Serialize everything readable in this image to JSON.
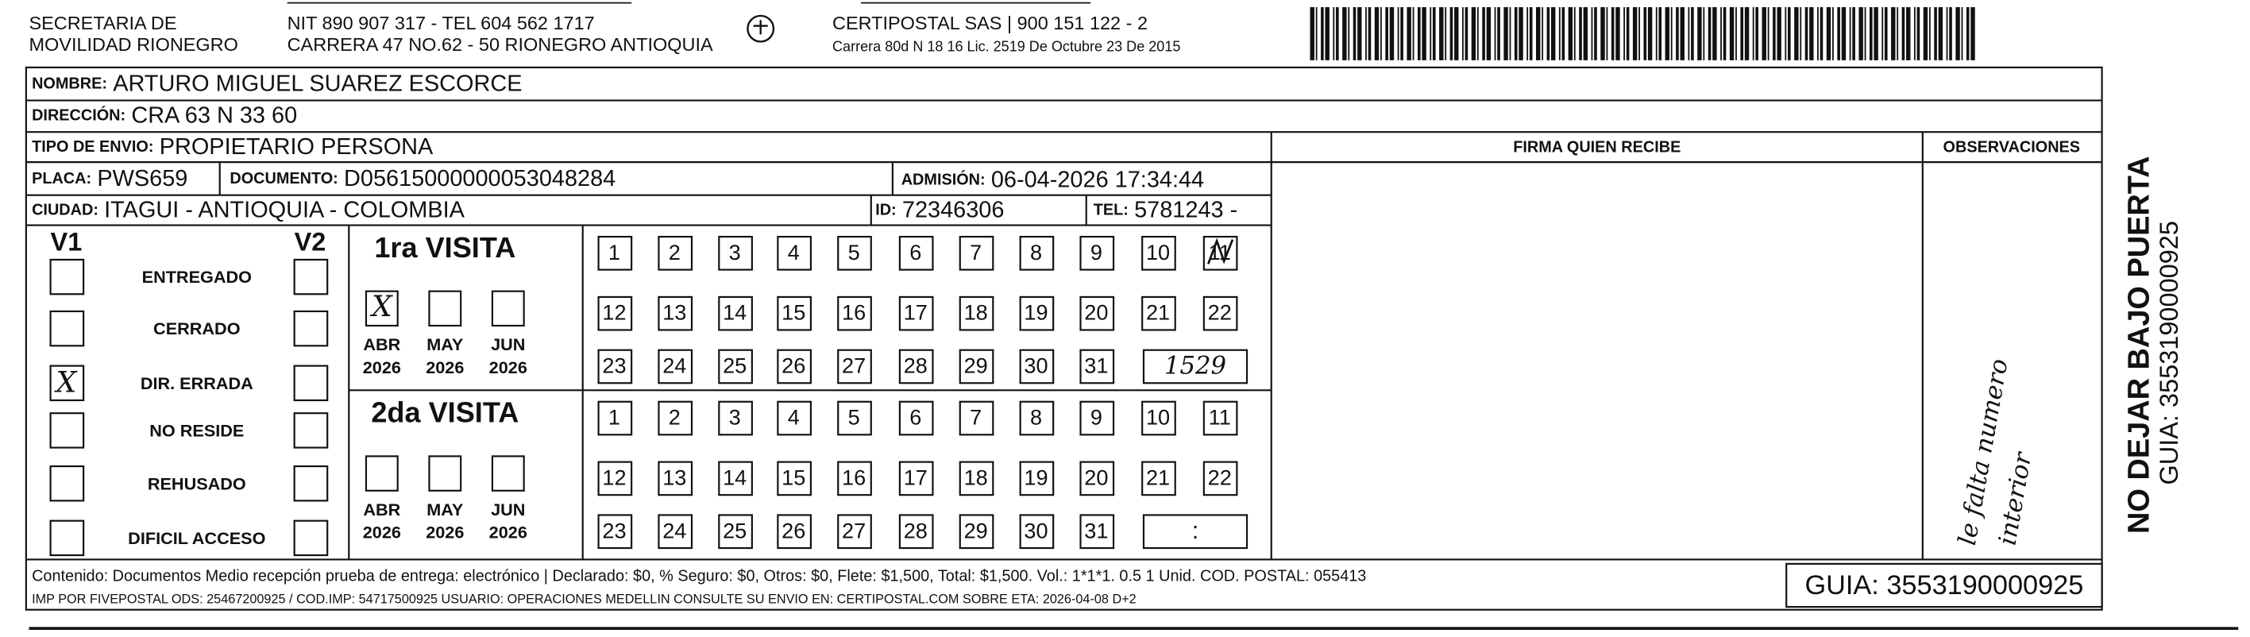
{
  "header": {
    "sender": [
      "SECRETARIA DE",
      "MOVILIDAD RIONEGRO"
    ],
    "sender_contact": [
      "NIT 890 907 317 - TEL 604 562 1717",
      "CARRERA 47 NO.62 - 50 RIONEGRO ANTIOQUIA"
    ],
    "carrier": [
      "CERTIPOSTAL SAS | 900 151 122 - 2",
      "Carrera 80d N 18 16 Lic. 2519 De Octubre 23 De 2015"
    ]
  },
  "fields": {
    "name": {
      "label": "NOMBRE:",
      "value": "ARTURO MIGUEL SUAREZ ESCORCE"
    },
    "address": {
      "label": "DIRECCIÓN:",
      "value": "CRA 63 N 33 60"
    },
    "shipment_type": {
      "label": "TIPO DE ENVIO:",
      "value": "PROPIETARIO PERSONA"
    },
    "plate": {
      "label": "PLACA:",
      "value": "PWS659"
    },
    "document": {
      "label": "DOCUMENTO:",
      "value": "D05615000000053048284"
    },
    "admission": {
      "label": "ADMISIÓN:",
      "value": "06-04-2026 17:34:44"
    },
    "city": {
      "label": "CIUDAD:",
      "value": "ITAGUI - ANTIOQUIA - COLOMBIA"
    },
    "id": {
      "label": "ID:",
      "value": "72346306"
    },
    "tel": {
      "label": "TEL:",
      "value": "5781243 -"
    }
  },
  "signature_header": "FIRMA QUIEN RECIBE",
  "observations_header": "OBSERVACIONES",
  "observations_note": [
    "le falta numero",
    "interior"
  ],
  "status": {
    "v1": "V1",
    "v2": "V2",
    "options": [
      {
        "label": "ENTREGADO"
      },
      {
        "label": "CERRADO"
      },
      {
        "label": "DIR. ERRADA",
        "v1": "X"
      },
      {
        "label": "NO RESIDE"
      },
      {
        "label": "REHUSADO"
      },
      {
        "label": "DIFICIL ACCESO"
      }
    ]
  },
  "visits": [
    {
      "title": "1ra VISITA",
      "months": [
        {
          "name": "ABR",
          "year": "2026",
          "mark": "X"
        },
        {
          "name": "MAY",
          "year": "2026"
        },
        {
          "name": "JUN",
          "year": "2026"
        }
      ],
      "days": [
        1,
        2,
        3,
        4,
        5,
        6,
        7,
        8,
        9,
        10,
        11,
        12,
        13,
        14,
        15,
        16,
        17,
        18,
        19,
        20,
        21,
        22,
        23,
        24,
        25,
        26,
        27,
        28,
        29,
        30,
        31
      ],
      "marked_day": 11,
      "time": "1529"
    },
    {
      "title": "2da VISITA",
      "months": [
        {
          "name": "ABR",
          "year": "2026"
        },
        {
          "name": "MAY",
          "year": "2026"
        },
        {
          "name": "JUN",
          "year": "2026"
        }
      ],
      "days": [
        1,
        2,
        3,
        4,
        5,
        6,
        7,
        8,
        9,
        10,
        11,
        12,
        13,
        14,
        15,
        16,
        17,
        18,
        19,
        20,
        21,
        22,
        23,
        24,
        25,
        26,
        27,
        28,
        29,
        30,
        31
      ],
      "time": ":"
    }
  ],
  "footer": {
    "content": "Contenido: Documentos Medio recepción prueba de entrega: electrónico | Declarado: $0, % Seguro: $0, Otros: $0, Flete: $1,500, Total: $1,500. Vol.: 1*1*1. 0.5  1 Unid. COD. POSTAL: 055413",
    "print_info": "IMP POR FIVEPOSTAL ODS: 25467200925 / COD.IMP: 54717500925 USUARIO: OPERACIONES MEDELLIN CONSULTE SU ENVIO EN: CERTIPOSTAL.COM SOBRE ETA: 2026-04-08 D+2",
    "guide": "GUIA: 3553190000925"
  },
  "side": {
    "warning": "NO DEJAR BAJO PUERTA",
    "guide": "GUIA: 3553190000925"
  }
}
